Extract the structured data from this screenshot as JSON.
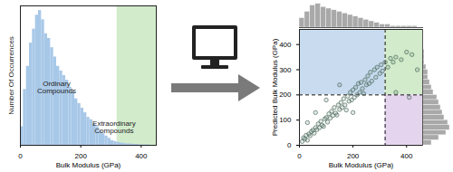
{
  "chart_data": [
    {
      "type": "histogram",
      "xlabel": "Bulk Modulus (GPa)",
      "ylabel": "Number Of Occurrences",
      "bins": [
        0,
        10,
        20,
        30,
        40,
        50,
        60,
        70,
        80,
        90,
        100,
        110,
        120,
        130,
        140,
        150,
        160,
        170,
        180,
        190,
        200,
        210,
        220,
        230,
        240,
        250,
        260,
        270,
        280,
        290,
        300,
        310,
        320,
        330,
        340,
        350,
        360,
        370,
        380,
        390,
        400,
        410,
        420,
        430,
        440
      ],
      "counts": [
        40,
        120,
        170,
        220,
        250,
        280,
        290,
        270,
        240,
        230,
        210,
        190,
        170,
        160,
        150,
        140,
        125,
        115,
        100,
        90,
        80,
        70,
        60,
        55,
        45,
        40,
        32,
        25,
        20,
        15,
        10,
        8,
        6,
        5,
        4,
        3,
        3,
        2,
        2,
        1,
        1,
        1,
        1,
        0
      ],
      "color": "#a8c8e8",
      "xlim": [
        0,
        450
      ],
      "ylim": [
        0,
        300
      ],
      "xticks": [
        0,
        200,
        400
      ],
      "tick_labels": "x",
      "regions": [
        {
          "x": [
            320,
            450
          ],
          "y": [
            0,
            300
          ],
          "color": "#d2ebcb"
        }
      ],
      "annotations": [
        {
          "text": "Ordinary\nCompounds",
          "x": 120,
          "y": 125
        },
        {
          "text": "Extraordinary\nCompounds",
          "x": 310,
          "y": 40
        }
      ]
    },
    {
      "type": "scatter",
      "xlabel": "Bulk Modulus (GPa)",
      "ylabel": "Predicted Bulk Modulus (GPa)",
      "x": [
        10,
        15,
        20,
        25,
        30,
        35,
        40,
        45,
        50,
        55,
        60,
        65,
        70,
        75,
        80,
        85,
        90,
        95,
        100,
        105,
        110,
        115,
        120,
        125,
        130,
        135,
        140,
        145,
        150,
        155,
        160,
        165,
        170,
        175,
        180,
        185,
        190,
        195,
        200,
        205,
        210,
        215,
        220,
        225,
        230,
        235,
        240,
        245,
        250,
        255,
        260,
        265,
        270,
        280,
        285,
        290,
        300,
        305,
        310,
        320,
        330,
        340,
        350,
        360,
        380,
        400,
        420,
        440,
        100,
        60,
        150,
        360,
        410,
        200,
        30
      ],
      "y": [
        15,
        30,
        25,
        40,
        20,
        45,
        38,
        55,
        60,
        48,
        70,
        62,
        85,
        70,
        95,
        80,
        75,
        105,
        110,
        92,
        125,
        108,
        135,
        118,
        150,
        128,
        120,
        160,
        142,
        170,
        150,
        185,
        160,
        140,
        195,
        175,
        210,
        180,
        220,
        190,
        230,
        200,
        245,
        210,
        250,
        225,
        205,
        260,
        240,
        275,
        245,
        290,
        255,
        300,
        270,
        310,
        285,
        320,
        295,
        330,
        310,
        345,
        330,
        350,
        340,
        370,
        360,
        300,
        180,
        130,
        240,
        210,
        190,
        130,
        90
      ],
      "color": "#4f6e60",
      "marker": "circle",
      "xlim": [
        0,
        460
      ],
      "ylim": [
        0,
        460
      ],
      "xticks": [
        0,
        200,
        400
      ],
      "yticks": [
        0,
        100,
        200,
        300,
        400
      ],
      "regions": [
        {
          "x": [
            0,
            320
          ],
          "y": [
            200,
            460
          ],
          "color": "#c8dbef"
        },
        {
          "x": [
            320,
            460
          ],
          "y": [
            200,
            460
          ],
          "color": "#d2ebcb"
        },
        {
          "x": [
            320,
            460
          ],
          "y": [
            0,
            200
          ],
          "color": "#e4d4ee"
        }
      ],
      "reference_lines": [
        {
          "x": 320,
          "line_style": "dashed"
        },
        {
          "y": 200,
          "line_style": "dashed"
        }
      ]
    },
    {
      "type": "histogram",
      "bins": [
        0,
        20,
        40,
        60,
        80,
        100,
        120,
        140,
        160,
        180,
        200,
        220,
        240,
        260,
        280,
        300,
        320,
        340,
        360,
        380,
        400,
        420,
        440,
        460
      ],
      "counts": [
        6,
        10,
        14,
        15,
        13,
        12,
        11,
        10,
        9,
        8,
        7,
        6,
        5,
        4,
        3,
        2,
        2,
        1,
        1,
        1,
        1,
        1,
        0
      ],
      "color": "#a9a9a9",
      "xlim": [
        0,
        460
      ],
      "ylim": [
        0,
        16
      ],
      "tick_labels": false
    },
    {
      "type": "histogram",
      "orientation": "horizontal",
      "bins": [
        0,
        20,
        40,
        60,
        80,
        100,
        120,
        140,
        160,
        180,
        200,
        220,
        240,
        260,
        280,
        300,
        320,
        340,
        360,
        380,
        400,
        420,
        440,
        460
      ],
      "counts": [
        5,
        9,
        13,
        15,
        14,
        12,
        11,
        10,
        9,
        8,
        6,
        5,
        4,
        3,
        3,
        2,
        1,
        1,
        1,
        0,
        0,
        0,
        0
      ],
      "color": "#a9a9a9",
      "xlim": [
        0,
        16
      ],
      "ylim": [
        0,
        460
      ],
      "tick_labels": false
    }
  ]
}
